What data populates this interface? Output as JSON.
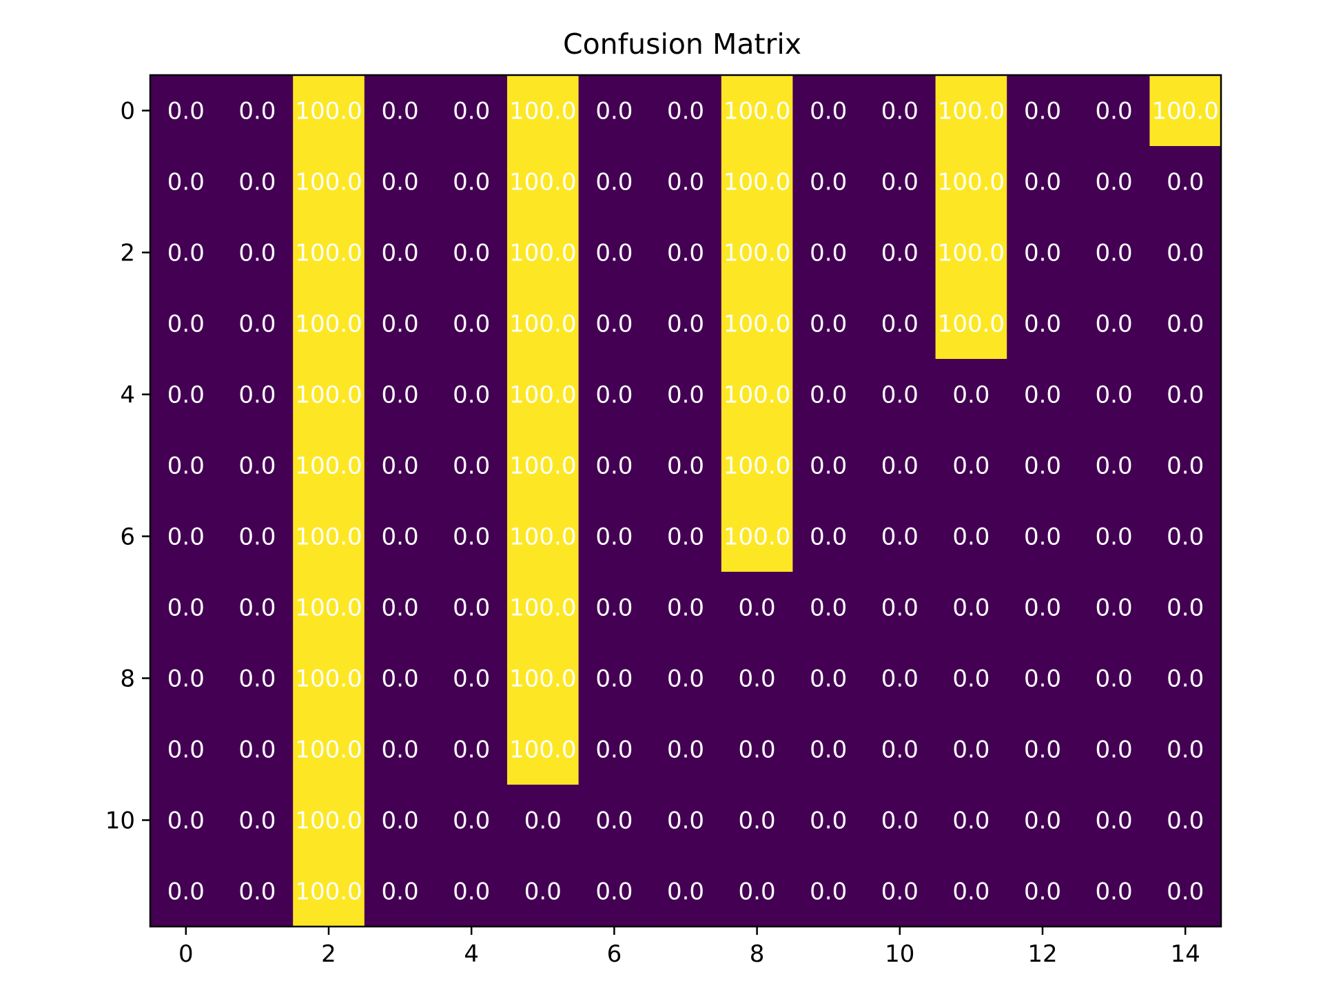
{
  "chart_data": {
    "type": "heatmap",
    "title": "Confusion Matrix",
    "xlabel": "",
    "ylabel": "",
    "colormap": "viridis",
    "colors": {
      "low": "#440154",
      "high": "#fde725",
      "cell_text": "#ffffff"
    },
    "value_range": [
      0,
      100
    ],
    "n_rows": 12,
    "n_cols": 15,
    "xlim": [
      -0.5,
      14.5
    ],
    "ylim": [
      11.5,
      -0.5
    ],
    "x_ticks": [
      0,
      2,
      4,
      6,
      8,
      10,
      12,
      14
    ],
    "x_tick_labels": [
      "0",
      "2",
      "4",
      "6",
      "8",
      "10",
      "12",
      "14"
    ],
    "y_ticks": [
      0,
      2,
      4,
      6,
      8,
      10
    ],
    "y_tick_labels": [
      "0",
      "2",
      "4",
      "6",
      "8",
      "10"
    ],
    "value_format": "0.0",
    "values": [
      [
        0,
        0,
        100,
        0,
        0,
        100,
        0,
        0,
        100,
        0,
        0,
        100,
        0,
        0,
        100
      ],
      [
        0,
        0,
        100,
        0,
        0,
        100,
        0,
        0,
        100,
        0,
        0,
        100,
        0,
        0,
        0
      ],
      [
        0,
        0,
        100,
        0,
        0,
        100,
        0,
        0,
        100,
        0,
        0,
        100,
        0,
        0,
        0
      ],
      [
        0,
        0,
        100,
        0,
        0,
        100,
        0,
        0,
        100,
        0,
        0,
        100,
        0,
        0,
        0
      ],
      [
        0,
        0,
        100,
        0,
        0,
        100,
        0,
        0,
        100,
        0,
        0,
        0,
        0,
        0,
        0
      ],
      [
        0,
        0,
        100,
        0,
        0,
        100,
        0,
        0,
        100,
        0,
        0,
        0,
        0,
        0,
        0
      ],
      [
        0,
        0,
        100,
        0,
        0,
        100,
        0,
        0,
        100,
        0,
        0,
        0,
        0,
        0,
        0
      ],
      [
        0,
        0,
        100,
        0,
        0,
        100,
        0,
        0,
        0,
        0,
        0,
        0,
        0,
        0,
        0
      ],
      [
        0,
        0,
        100,
        0,
        0,
        100,
        0,
        0,
        0,
        0,
        0,
        0,
        0,
        0,
        0
      ],
      [
        0,
        0,
        100,
        0,
        0,
        100,
        0,
        0,
        0,
        0,
        0,
        0,
        0,
        0,
        0
      ],
      [
        0,
        0,
        100,
        0,
        0,
        0,
        0,
        0,
        0,
        0,
        0,
        0,
        0,
        0,
        0
      ],
      [
        0,
        0,
        100,
        0,
        0,
        0,
        0,
        0,
        0,
        0,
        0,
        0,
        0,
        0,
        0
      ]
    ]
  }
}
